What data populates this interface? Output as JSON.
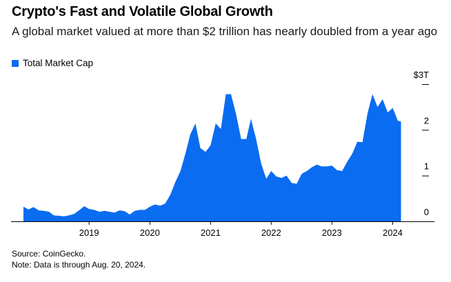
{
  "title": "Crypto's Fast and Volatile Global Growth",
  "subtitle": "A global market valued at more than $2 trillion has nearly doubled from a year ago",
  "legend": {
    "label": "Total Market Cap"
  },
  "source": "Source: CoinGecko.",
  "note": "Note: Data is through Aug. 20, 2024.",
  "colors": {
    "series": "#0a6cf0",
    "axis": "#000000"
  },
  "chart_data": {
    "type": "area",
    "series": [
      {
        "name": "Total Market Cap",
        "x": [
          "2018-06-01",
          "2018-07-01",
          "2018-08-01",
          "2018-09-01",
          "2018-10-01",
          "2018-11-01",
          "2018-12-01",
          "2019-01-01",
          "2019-02-01",
          "2019-03-01",
          "2019-04-01",
          "2019-05-01",
          "2019-06-01",
          "2019-07-01",
          "2019-08-01",
          "2019-09-01",
          "2019-10-01",
          "2019-11-01",
          "2019-12-01",
          "2020-01-01",
          "2020-02-01",
          "2020-03-01",
          "2020-04-01",
          "2020-05-01",
          "2020-06-01",
          "2020-07-01",
          "2020-08-01",
          "2020-09-01",
          "2020-10-01",
          "2020-11-01",
          "2020-12-01",
          "2021-01-01",
          "2021-02-01",
          "2021-03-01",
          "2021-04-01",
          "2021-05-01",
          "2021-06-01",
          "2021-07-01",
          "2021-08-01",
          "2021-09-01",
          "2021-10-01",
          "2021-11-01",
          "2021-12-01",
          "2022-01-01",
          "2022-02-01",
          "2022-03-01",
          "2022-04-01",
          "2022-05-01",
          "2022-06-01",
          "2022-07-01",
          "2022-08-01",
          "2022-09-01",
          "2022-10-01",
          "2022-11-01",
          "2022-12-01",
          "2023-01-01",
          "2023-02-01",
          "2023-03-01",
          "2023-04-01",
          "2023-05-01",
          "2023-06-01",
          "2023-07-01",
          "2023-08-01",
          "2023-09-01",
          "2023-10-01",
          "2023-11-01",
          "2023-12-01",
          "2024-01-01",
          "2024-02-01",
          "2024-03-01",
          "2024-04-01",
          "2024-05-01",
          "2024-06-01",
          "2024-07-01",
          "2024-08-01",
          "2024-08-20"
        ],
        "values": [
          0.32,
          0.26,
          0.31,
          0.24,
          0.23,
          0.21,
          0.13,
          0.12,
          0.11,
          0.13,
          0.16,
          0.24,
          0.33,
          0.27,
          0.25,
          0.21,
          0.23,
          0.21,
          0.19,
          0.24,
          0.22,
          0.15,
          0.23,
          0.25,
          0.25,
          0.32,
          0.37,
          0.34,
          0.39,
          0.58,
          0.86,
          1.1,
          1.5,
          1.9,
          2.14,
          1.6,
          1.52,
          1.66,
          2.14,
          2.02,
          2.78,
          2.78,
          2.35,
          1.8,
          1.8,
          2.24,
          1.8,
          1.27,
          0.93,
          1.1,
          0.98,
          0.95,
          1.0,
          0.84,
          0.82,
          1.04,
          1.1,
          1.18,
          1.24,
          1.2,
          1.2,
          1.22,
          1.12,
          1.1,
          1.3,
          1.48,
          1.74,
          1.73,
          2.37,
          2.78,
          2.5,
          2.67,
          2.38,
          2.48,
          2.2,
          2.18
        ]
      }
    ],
    "xlabel": "",
    "ylabel": "",
    "x_tick_labels": [
      "2019",
      "2020",
      "2021",
      "2022",
      "2023",
      "2024"
    ],
    "y_ticks": [
      0,
      1,
      2,
      3
    ],
    "y_tick_labels": [
      "0",
      "1",
      "2",
      "$3T"
    ],
    "ylim": [
      0,
      3
    ],
    "xlim": [
      "2018-06-01",
      "2024-10-15"
    ],
    "grid": false,
    "y_axis_side": "right",
    "legend_position": "top-left"
  }
}
